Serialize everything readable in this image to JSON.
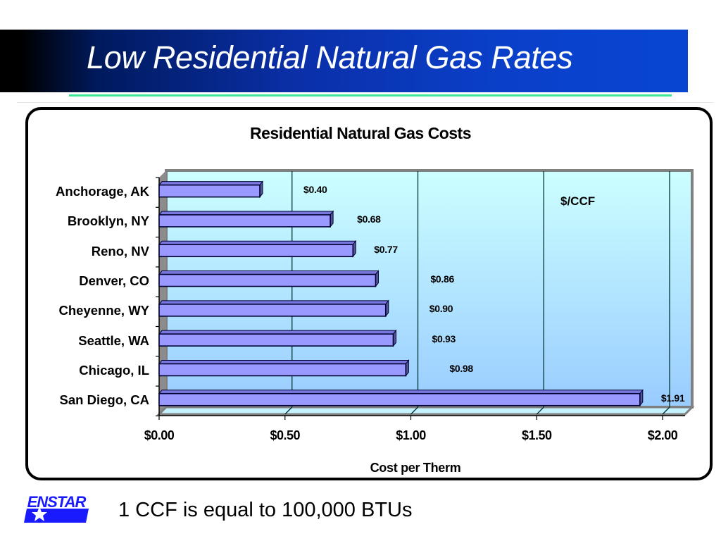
{
  "slide": {
    "title": "Low Residential Natural Gas Rates",
    "footnote": "1 CCF is equal to 100,000 BTUs",
    "logo_text": "ENSTAR",
    "colors": {
      "title_band_dark": "#000000",
      "title_band_blue": "#0846d2",
      "title_rule": "#3ee69a",
      "bar_fill": "#9999ff",
      "bar_outline": "#000033",
      "plot_top": "#ccffff",
      "plot_bottom": "#99ccff",
      "logo_blue": "#1a1aff"
    }
  },
  "chart": {
    "unit_label": "$/CCF",
    "x_ticks": [
      "$0.00",
      "$0.50",
      "$1.00",
      "$1.50",
      "$2.00"
    ],
    "categories": [
      "Anchorage, AK",
      "Brooklyn, NY",
      "Reno, NV",
      "Denver, CO",
      "Cheyenne, WY",
      "Seattle, WA",
      "Chicago, IL",
      "San Diego, CA"
    ],
    "value_labels": [
      "$0.40",
      "$0.68",
      "$0.77",
      "$0.86",
      "$0.90",
      "$0.93",
      "$0.98",
      "$1.91"
    ]
  },
  "chart_data": {
    "type": "bar",
    "orientation": "horizontal",
    "title": "Residential Natural Gas Costs",
    "xlabel": "Cost per Therm",
    "ylabel": "",
    "annotation": "$/CCF",
    "categories": [
      "Anchorage, AK",
      "Brooklyn, NY",
      "Reno, NV",
      "Denver, CO",
      "Cheyenne, WY",
      "Seattle, WA",
      "Chicago, IL",
      "San Diego, CA"
    ],
    "values": [
      0.4,
      0.68,
      0.77,
      0.86,
      0.9,
      0.93,
      0.98,
      1.91
    ],
    "data_labels": [
      "$0.40",
      "$0.68",
      "$0.77",
      "$0.86",
      "$0.90",
      "$0.93",
      "$0.98",
      "$1.91"
    ],
    "xlim": [
      0,
      2.0
    ],
    "x_ticks": [
      0,
      0.5,
      1.0,
      1.5,
      2.0
    ],
    "x_tick_labels": [
      "$0.00",
      "$0.50",
      "$1.00",
      "$1.50",
      "$2.00"
    ],
    "grid": "vertical major gridlines",
    "style": "3D clustered bar",
    "legend": "none"
  }
}
